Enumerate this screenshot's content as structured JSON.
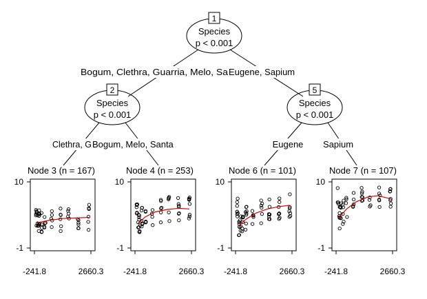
{
  "nodes": [
    {
      "id": "1",
      "variable": "Species",
      "pvalue": "p < 0.001"
    },
    {
      "id": "2",
      "variable": "Species",
      "pvalue": "p < 0.001"
    },
    {
      "id": "5",
      "variable": "Species",
      "pvalue": "p < 0.001"
    }
  ],
  "edges": {
    "n1_left": "Bogum, Clethra, Guarria, Melo, Sa",
    "n1_right": "Eugene, Sapium",
    "n2_left": "Clethra, G",
    "n2_right": "Bogum, Melo, Santa",
    "n5_left": "Eugene",
    "n5_right": "Sapium"
  },
  "terminals": [
    {
      "title": "Node 3 (n = 167)"
    },
    {
      "title": "Node 4 (n = 253)"
    },
    {
      "title": "Node 6 (n = 101)"
    },
    {
      "title": "Node 7 (n = 107)"
    }
  ],
  "chart_data": {
    "type": "scatter",
    "ylim": [
      -1,
      10
    ],
    "xlim": [
      -241.8,
      2660.3
    ],
    "yticks": [
      "10",
      "-1"
    ],
    "xticks": [
      "-241.8",
      "2660.3"
    ],
    "fit_line_color": "#cc0000",
    "panels": [
      {
        "node": "3",
        "fit": [
          [
            -120,
            3.2
          ],
          [
            500,
            3.6
          ],
          [
            1200,
            3.9
          ],
          [
            1900,
            4.0
          ],
          [
            2550,
            4.1
          ]
        ]
      },
      {
        "node": "4",
        "fit": [
          [
            -120,
            3.0
          ],
          [
            300,
            4.2
          ],
          [
            800,
            5.0
          ],
          [
            1400,
            5.4
          ],
          [
            2000,
            5.6
          ],
          [
            2550,
            5.5
          ]
        ]
      },
      {
        "node": "6",
        "fit": [
          [
            -120,
            2.6
          ],
          [
            300,
            3.8
          ],
          [
            800,
            4.8
          ],
          [
            1400,
            5.5
          ],
          [
            2000,
            5.9
          ],
          [
            2550,
            6.1
          ]
        ]
      },
      {
        "node": "7",
        "fit": [
          [
            -120,
            4.0
          ],
          [
            300,
            5.5
          ],
          [
            800,
            6.7
          ],
          [
            1400,
            7.5
          ],
          [
            1900,
            7.7
          ],
          [
            2550,
            7.2
          ]
        ]
      }
    ]
  }
}
